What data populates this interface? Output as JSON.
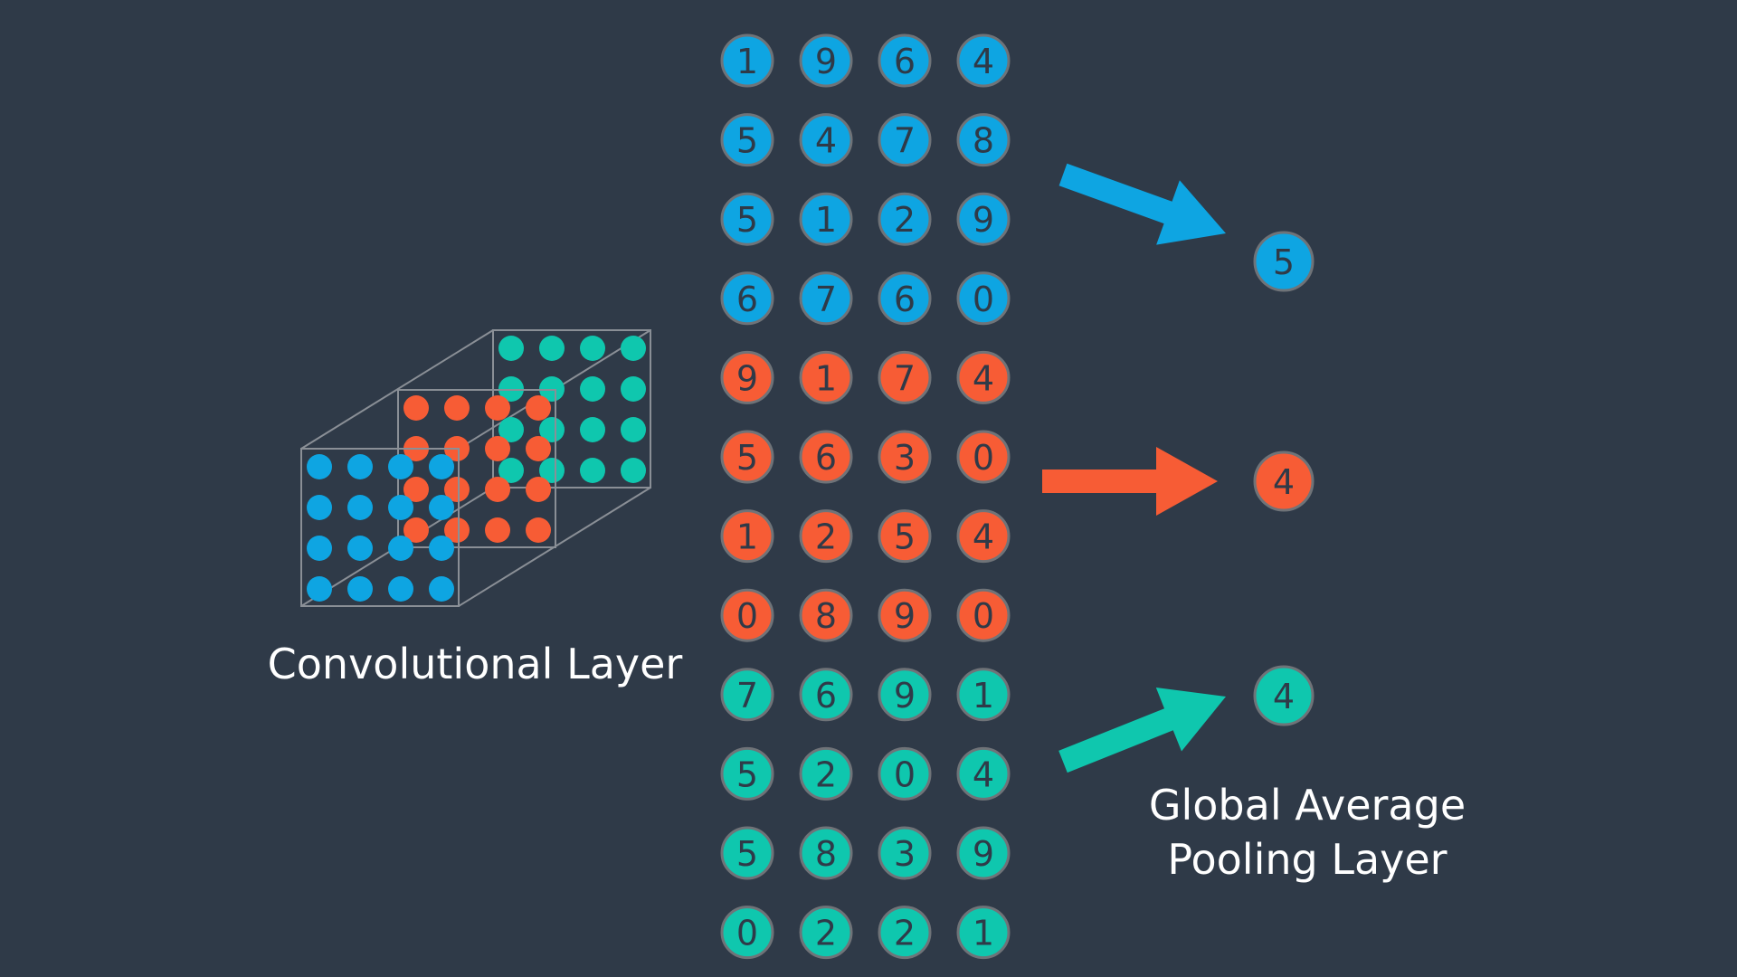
{
  "colors": {
    "background": "#2f3a48",
    "blue": "#0ea5e2",
    "orange": "#f75c35",
    "teal": "#0fc7ae",
    "circle_stroke": "#6f7378",
    "text": "#ffffff",
    "number": "#2f3a48"
  },
  "conv_label": "Convolutional Layer",
  "gap_label": [
    "Global Average",
    "Pooling Layer"
  ],
  "matrices": [
    {
      "color": "blue",
      "rows": [
        [
          1,
          9,
          6,
          4
        ],
        [
          5,
          4,
          7,
          8
        ],
        [
          5,
          1,
          2,
          9
        ],
        [
          6,
          7,
          6,
          0
        ]
      ],
      "average": 5
    },
    {
      "color": "orange",
      "rows": [
        [
          9,
          1,
          7,
          4
        ],
        [
          5,
          6,
          3,
          0
        ],
        [
          1,
          2,
          5,
          4
        ],
        [
          0,
          8,
          9,
          0
        ]
      ],
      "average": 4
    },
    {
      "color": "teal",
      "rows": [
        [
          7,
          6,
          9,
          1
        ],
        [
          5,
          2,
          0,
          4
        ],
        [
          5,
          8,
          3,
          9
        ],
        [
          0,
          2,
          2,
          1
        ]
      ],
      "average": 4
    }
  ]
}
